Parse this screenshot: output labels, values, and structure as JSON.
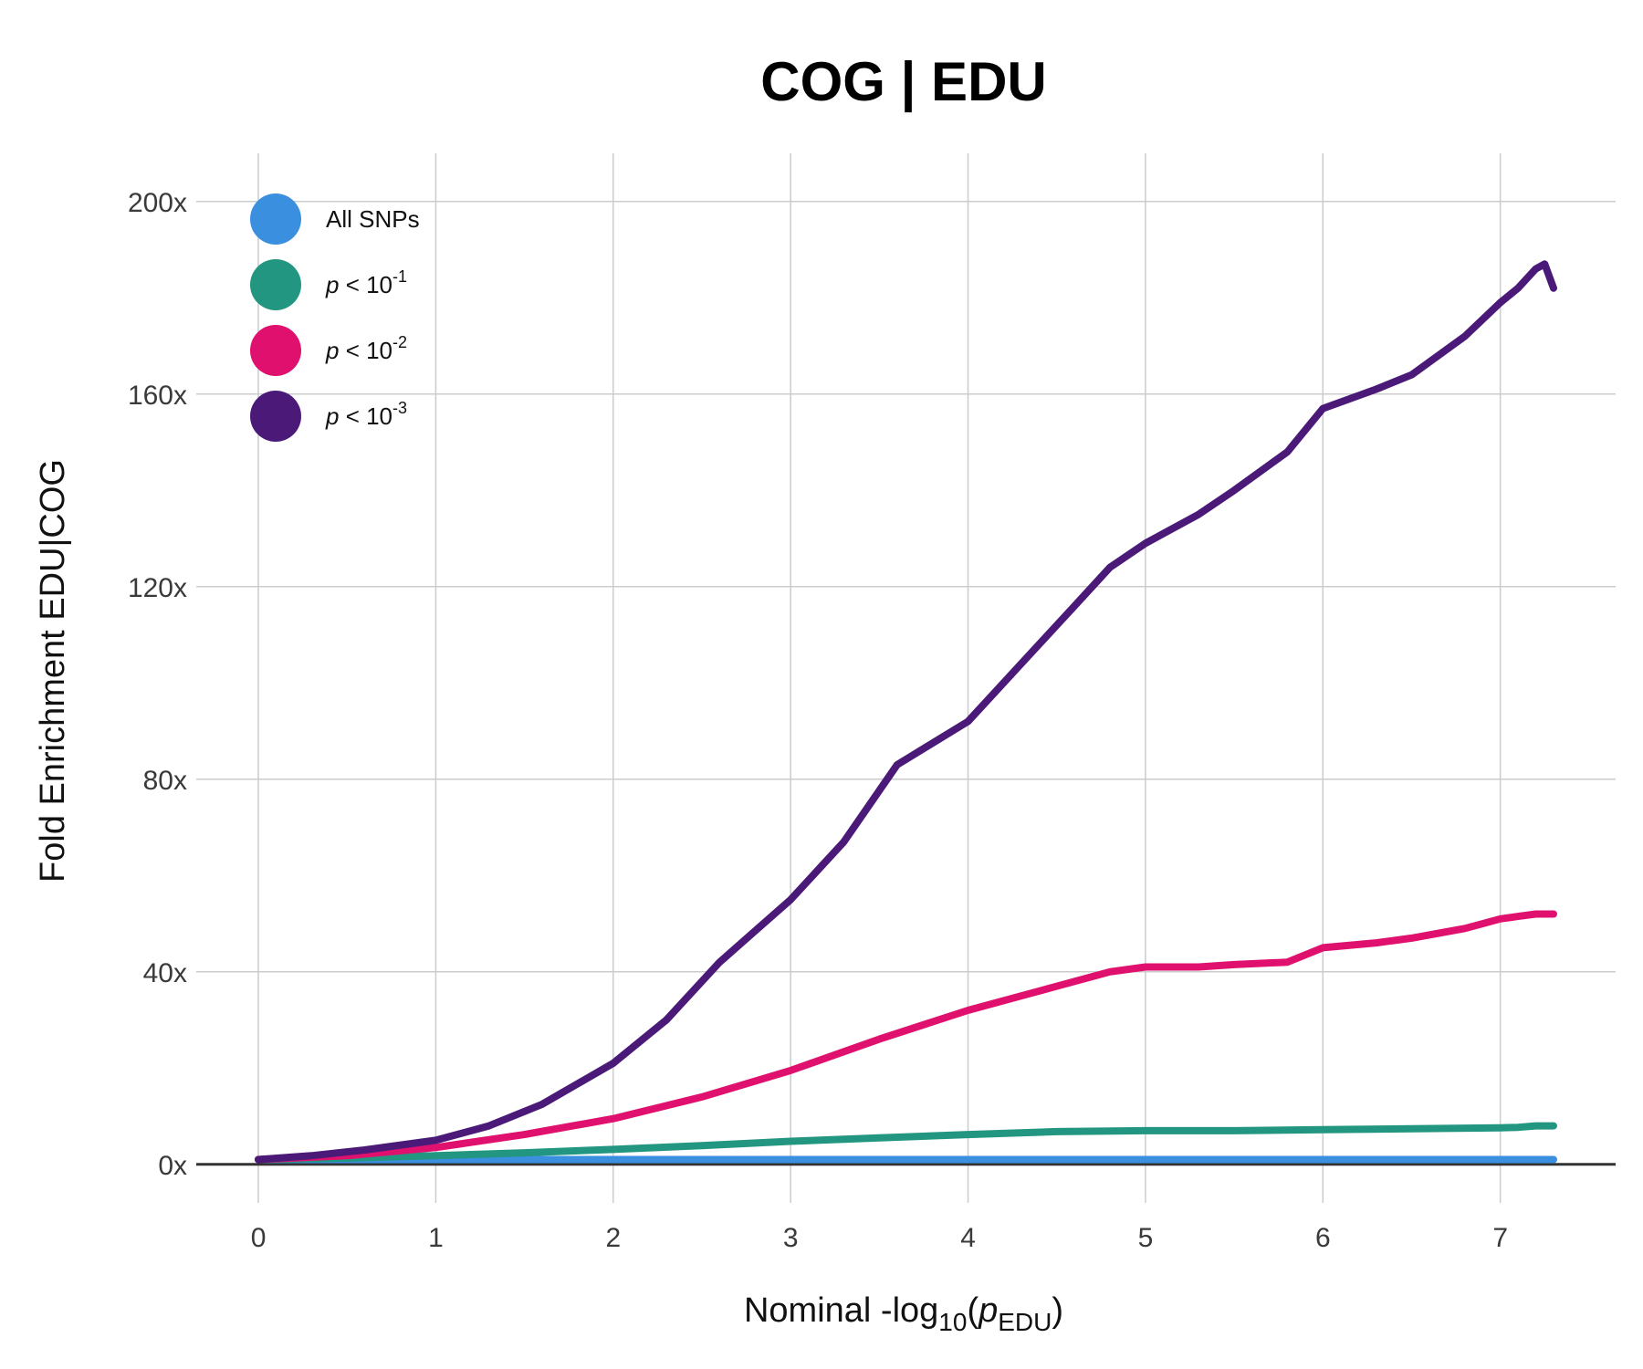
{
  "chart_data": {
    "type": "line",
    "title": "COG | EDU",
    "xlabel": {
      "main": "Nominal -log",
      "sub": "10",
      "paren_open": "(",
      "p": "p",
      "p_sub": "EDU",
      "paren_close": ")"
    },
    "ylabel": "Fold Enrichment EDU|COG",
    "xlim": [
      -0.35,
      7.65
    ],
    "ylim": [
      -8,
      210
    ],
    "xticks": [
      {
        "value": 0,
        "label": "0"
      },
      {
        "value": 1,
        "label": "1"
      },
      {
        "value": 2,
        "label": "2"
      },
      {
        "value": 3,
        "label": "3"
      },
      {
        "value": 4,
        "label": "4"
      },
      {
        "value": 5,
        "label": "5"
      },
      {
        "value": 6,
        "label": "6"
      },
      {
        "value": 7,
        "label": "7"
      }
    ],
    "yticks": [
      {
        "value": 0,
        "label": "0x"
      },
      {
        "value": 40,
        "label": "40x"
      },
      {
        "value": 80,
        "label": "80x"
      },
      {
        "value": 120,
        "label": "120x"
      },
      {
        "value": 160,
        "label": "160x"
      },
      {
        "value": 200,
        "label": "200x"
      }
    ],
    "grid": true,
    "legend_position": "top-left",
    "series": [
      {
        "name": "All SNPs",
        "legend_label": {
          "text": "All SNPs"
        },
        "color": "#3a8fdf",
        "x": [
          0,
          1,
          2,
          3,
          4,
          5,
          6,
          7,
          7.3
        ],
        "y": [
          1,
          1,
          1,
          1,
          1,
          1,
          1,
          1,
          1
        ]
      },
      {
        "name": "p < 10-1",
        "legend_label": {
          "p": "p",
          "lt": " < 10",
          "exp": "-1"
        },
        "color": "#229680",
        "x": [
          0,
          0.5,
          1,
          1.5,
          2,
          2.5,
          3,
          3.5,
          4,
          4.5,
          5,
          5.5,
          6,
          6.5,
          7,
          7.1,
          7.2,
          7.3
        ],
        "y": [
          1,
          1.3,
          1.8,
          2.4,
          3.1,
          3.9,
          4.8,
          5.5,
          6.2,
          6.8,
          7.0,
          7.0,
          7.2,
          7.4,
          7.6,
          7.7,
          8.0,
          8.0
        ]
      },
      {
        "name": "p < 10-2",
        "legend_label": {
          "p": "p",
          "lt": " < 10",
          "exp": "-2"
        },
        "color": "#e0106f",
        "x": [
          0,
          0.5,
          1,
          1.5,
          2,
          2.5,
          3,
          3.5,
          4,
          4.3,
          4.6,
          4.8,
          5,
          5.3,
          5.5,
          5.8,
          6,
          6.3,
          6.5,
          6.8,
          7,
          7.1,
          7.2,
          7.3
        ],
        "y": [
          1,
          1.8,
          3.5,
          6.2,
          9.5,
          14,
          19.5,
          26,
          32,
          35,
          38,
          40,
          41,
          41,
          41.5,
          42,
          45,
          46,
          47,
          49,
          51,
          51.5,
          52,
          52
        ]
      },
      {
        "name": "p < 10-3",
        "legend_label": {
          "p": "p",
          "lt": " < 10",
          "exp": "-3"
        },
        "color": "#4b1a78",
        "x": [
          0,
          0.3,
          0.6,
          1,
          1.3,
          1.6,
          2,
          2.3,
          2.6,
          3,
          3.3,
          3.6,
          4,
          4.3,
          4.6,
          4.8,
          5,
          5.3,
          5.5,
          5.8,
          6,
          6.3,
          6.5,
          6.8,
          7,
          7.1,
          7.2,
          7.25,
          7.3
        ],
        "y": [
          1,
          1.8,
          3,
          5,
          8,
          12.5,
          21,
          30,
          42,
          55,
          67,
          83,
          92,
          104,
          116,
          124,
          129,
          135,
          140,
          148,
          157,
          161,
          164,
          172,
          179,
          182,
          186,
          187,
          182
        ]
      }
    ]
  }
}
